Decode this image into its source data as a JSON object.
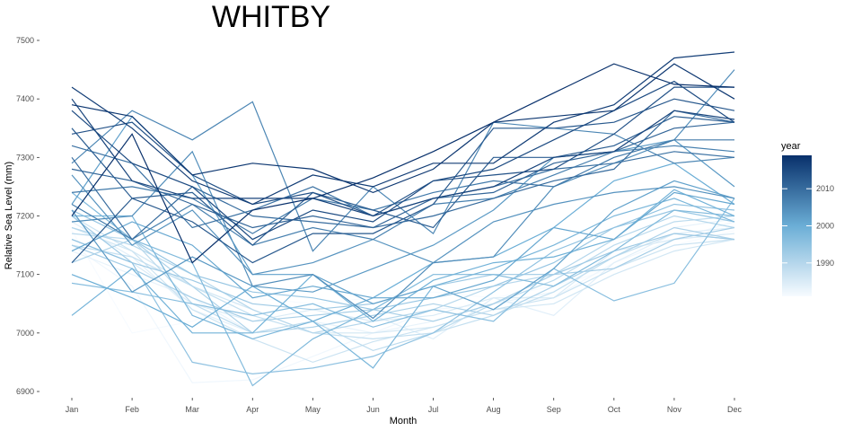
{
  "chart_data": {
    "type": "line",
    "title": "WHITBY",
    "xlabel": "Month",
    "ylabel": "Relative Sea Level (mm)",
    "categories": [
      "Jan",
      "Feb",
      "Mar",
      "Apr",
      "May",
      "Jun",
      "Jul",
      "Aug",
      "Sep",
      "Oct",
      "Nov",
      "Dec"
    ],
    "ylim": [
      6890,
      7505
    ],
    "yticks": [
      6900,
      7000,
      7100,
      7200,
      7300,
      7400,
      7500
    ],
    "grid": false,
    "legend": {
      "title": "year",
      "position": "right",
      "type": "colorbar",
      "range": [
        1981,
        2019
      ],
      "ticks": [
        1990,
        2000,
        2010
      ],
      "color_low": "#f7fbff",
      "color_high": "#08306b"
    },
    "series": [
      {
        "year": 1981,
        "values": [
          7175,
          7000,
          7020,
          7060,
          7050,
          7060,
          7070,
          7060,
          7080,
          7110,
          7150,
          7175
        ]
      },
      {
        "year": 1982,
        "values": [
          7150,
          7080,
          6915,
          6920,
          6960,
          7000,
          7040,
          7050,
          7060,
          7120,
          7160,
          7190
        ]
      },
      {
        "year": 1983,
        "values": [
          7140,
          7100,
          7060,
          7000,
          7020,
          7000,
          7020,
          7050,
          7070,
          7130,
          7180,
          7195
        ]
      },
      {
        "year": 1984,
        "values": [
          7190,
          7130,
          7040,
          7000,
          7010,
          7030,
          6990,
          7060,
          7030,
          7120,
          7170,
          7180
        ]
      },
      {
        "year": 1985,
        "values": [
          7160,
          7120,
          7050,
          7020,
          7040,
          7020,
          7030,
          7060,
          7060,
          7140,
          7160,
          7170
        ]
      },
      {
        "year": 1986,
        "values": [
          7180,
          7140,
          7080,
          7040,
          7000,
          7000,
          7010,
          7040,
          7050,
          7100,
          7140,
          7160
        ]
      },
      {
        "year": 1987,
        "values": [
          7200,
          7140,
          7040,
          6990,
          6950,
          6985,
          7010,
          7040,
          7060,
          7110,
          7150,
          7160
        ]
      },
      {
        "year": 1988,
        "values": [
          7150,
          7130,
          7080,
          7030,
          7000,
          6990,
          7000,
          7030,
          7070,
          7130,
          7170,
          7160
        ]
      },
      {
        "year": 1989,
        "values": [
          7170,
          7160,
          7050,
          7000,
          7020,
          6970,
          7000,
          7050,
          7090,
          7150,
          7190,
          7200
        ]
      },
      {
        "year": 1990,
        "values": [
          7180,
          7150,
          7100,
          7040,
          7000,
          7020,
          7040,
          7080,
          7100,
          7160,
          7200,
          7180
        ]
      },
      {
        "year": 1991,
        "values": [
          7120,
          7160,
          7080,
          7000,
          7010,
          7030,
          7050,
          7030,
          7080,
          7130,
          7180,
          7160
        ]
      },
      {
        "year": 1992,
        "values": [
          7150,
          7110,
          7060,
          7020,
          7030,
          7040,
          7020,
          7050,
          7100,
          7110,
          7160,
          7180
        ]
      },
      {
        "year": 1993,
        "values": [
          7200,
          7120,
          7090,
          7050,
          7040,
          7050,
          7080,
          7100,
          7100,
          7140,
          7170,
          7160
        ]
      },
      {
        "year": 1994,
        "values": [
          7210,
          7160,
          7100,
          7070,
          7060,
          7040,
          7060,
          7080,
          7120,
          7180,
          7210,
          7190
        ]
      },
      {
        "year": 1995,
        "values": [
          7160,
          7120,
          6950,
          6930,
          6940,
          6960,
          7000,
          7070,
          7140,
          7180,
          7220,
          7210
        ]
      },
      {
        "year": 1996,
        "values": [
          7085,
          7070,
          7050,
          7030,
          7050,
          7010,
          7040,
          7020,
          7110,
          7055,
          7085,
          7230
        ]
      },
      {
        "year": 1997,
        "values": [
          7240,
          7160,
          7120,
          6910,
          6990,
          7040,
          7100,
          7100,
          7080,
          7140,
          7210,
          7200
        ]
      },
      {
        "year": 1998,
        "values": [
          7200,
          7200,
          7030,
          6990,
          7020,
          6940,
          7080,
          7110,
          7150,
          7200,
          7230,
          7190
        ]
      },
      {
        "year": 1999,
        "values": [
          7030,
          7110,
          7000,
          7000,
          7100,
          7020,
          7090,
          7120,
          7130,
          7160,
          7245,
          7200
        ]
      },
      {
        "year": 2000,
        "values": [
          7100,
          7060,
          7010,
          7080,
          7020,
          7060,
          7120,
          7130,
          7180,
          7260,
          7290,
          7220
        ]
      },
      {
        "year": 2001,
        "values": [
          7140,
          7190,
          7150,
          7060,
          7080,
          7060,
          7060,
          7090,
          7180,
          7160,
          7240,
          7220
        ]
      },
      {
        "year": 2002,
        "values": [
          7220,
          7370,
          7270,
          7100,
          7100,
          7050,
          7080,
          7040,
          7110,
          7210,
          7260,
          7230
        ]
      },
      {
        "year": 2003,
        "values": [
          7210,
          7070,
          7130,
          7080,
          7070,
          7110,
          7150,
          7210,
          7300,
          7310,
          7330,
          7250
        ]
      },
      {
        "year": 2004,
        "values": [
          7270,
          7150,
          7210,
          7100,
          7120,
          7160,
          7120,
          7190,
          7220,
          7240,
          7250,
          7230
        ]
      },
      {
        "year": 2005,
        "values": [
          7190,
          7200,
          7310,
          7080,
          7100,
          7025,
          7120,
          7130,
          7250,
          7290,
          7330,
          7450
        ]
      },
      {
        "year": 2006,
        "values": [
          7290,
          7380,
          7330,
          7395,
          7140,
          7250,
          7170,
          7360,
          7350,
          7340,
          7290,
          7300
        ]
      },
      {
        "year": 2007,
        "values": [
          7220,
          7160,
          7220,
          7150,
          7180,
          7160,
          7220,
          7230,
          7270,
          7310,
          7320,
          7310
        ]
      },
      {
        "year": 2008,
        "values": [
          7240,
          7250,
          7230,
          7170,
          7230,
          7210,
          7240,
          7260,
          7250,
          7300,
          7330,
          7330
        ]
      },
      {
        "year": 2009,
        "values": [
          7320,
          7290,
          7180,
          7210,
          7250,
          7200,
          7230,
          7250,
          7280,
          7290,
          7310,
          7300
        ]
      },
      {
        "year": 2010,
        "values": [
          7300,
          7160,
          7250,
          7200,
          7190,
          7180,
          7200,
          7230,
          7260,
          7280,
          7380,
          7360
        ]
      },
      {
        "year": 2011,
        "values": [
          7280,
          7260,
          7220,
          7180,
          7200,
          7180,
          7230,
          7240,
          7290,
          7310,
          7350,
          7360
        ]
      },
      {
        "year": 2012,
        "values": [
          7350,
          7230,
          7240,
          7150,
          7240,
          7210,
          7180,
          7300,
          7300,
          7320,
          7370,
          7360
        ]
      },
      {
        "year": 2013,
        "values": [
          7120,
          7230,
          7190,
          7120,
          7170,
          7170,
          7220,
          7350,
          7350,
          7360,
          7400,
          7380
        ]
      },
      {
        "year": 2014,
        "values": [
          7340,
          7360,
          7270,
          7220,
          7240,
          7200,
          7260,
          7270,
          7280,
          7340,
          7420,
          7420
        ]
      },
      {
        "year": 2015,
        "values": [
          7380,
          7290,
          7250,
          7160,
          7210,
          7190,
          7260,
          7280,
          7330,
          7380,
          7430,
          7360
        ]
      },
      {
        "year": 2016,
        "values": [
          7400,
          7260,
          7230,
          7230,
          7230,
          7200,
          7230,
          7250,
          7300,
          7310,
          7380,
          7365
        ]
      },
      {
        "year": 2017,
        "values": [
          7420,
          7350,
          7260,
          7220,
          7270,
          7250,
          7290,
          7290,
          7360,
          7390,
          7470,
          7480
        ]
      },
      {
        "year": 2018,
        "values": [
          7390,
          7370,
          7270,
          7290,
          7280,
          7240,
          7280,
          7360,
          7370,
          7380,
          7460,
          7400
        ]
      },
      {
        "year": 2019,
        "values": [
          7200,
          7340,
          7120,
          7210,
          7230,
          7265,
          7310,
          7360,
          7410,
          7460,
          7425,
          7420
        ]
      }
    ]
  }
}
